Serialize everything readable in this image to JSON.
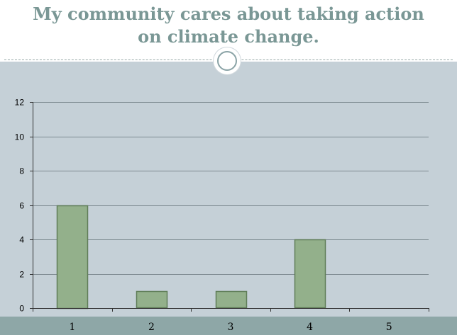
{
  "slide": {
    "title_line1": "My community cares about taking action",
    "title_line2": "on climate change."
  },
  "colors": {
    "bar_fill": "#93b08b",
    "bar_stroke": "#5f7d58",
    "plot_bg": "#c5d0d7",
    "title_color": "#7a9795",
    "band": "#8ea7a7"
  },
  "chart_data": {
    "type": "bar",
    "title": "",
    "xlabel": "",
    "ylabel": "",
    "categories": [
      "1",
      "2",
      "3",
      "4",
      "5"
    ],
    "values": [
      6,
      1,
      1,
      4,
      0
    ],
    "ylim": [
      0,
      12
    ],
    "yticks": [
      0,
      2,
      4,
      6,
      8,
      10,
      12
    ],
    "grid": true,
    "legend": "none"
  }
}
